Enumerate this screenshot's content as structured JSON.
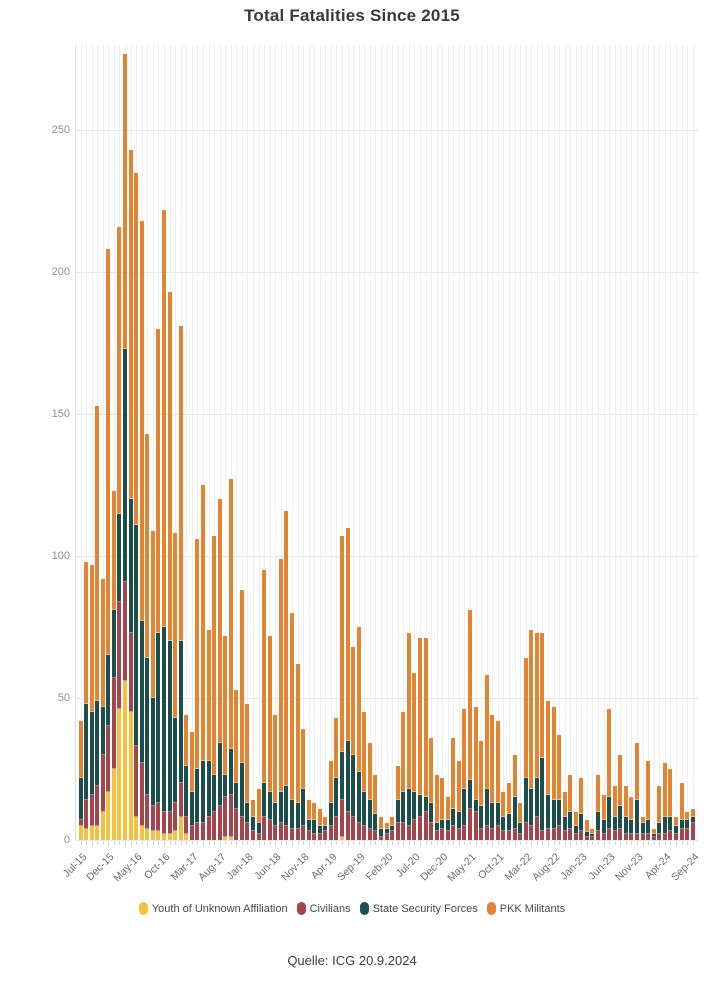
{
  "title": "Total Fatalities Since 2015",
  "source": "Quelle: ICG 20.9.2024",
  "y_axis": {
    "ticks": [
      0,
      50,
      100,
      150,
      200,
      250
    ]
  },
  "x_axis": {
    "tick_every": 5,
    "tick_labels": [
      "Jul-15",
      "Dec-15",
      "May-16",
      "Oct-16",
      "Mar-17",
      "Aug-17",
      "Jan-18",
      "Jun-18",
      "Nov-18",
      "Apr-19",
      "Sep-19",
      "Feb-20",
      "Jul-20",
      "Dec-20",
      "May-21",
      "Oct-21",
      "Mar-22",
      "Aug-22",
      "Jan-23",
      "Jun-23",
      "Nov-23",
      "Apr-24",
      "Sep-24"
    ]
  },
  "chart_data": {
    "type": "bar",
    "stacked": true,
    "title": "Total Fatalities Since 2015",
    "xlabel": "",
    "ylabel": "",
    "ylim": [
      0,
      280
    ],
    "grid": true,
    "legend_position": "bottom",
    "categories": [
      "Jul-15",
      "Aug-15",
      "Sep-15",
      "Oct-15",
      "Nov-15",
      "Dec-15",
      "Jan-16",
      "Feb-16",
      "Mar-16",
      "Apr-16",
      "May-16",
      "Jun-16",
      "Jul-16",
      "Aug-16",
      "Sep-16",
      "Oct-16",
      "Nov-16",
      "Dec-16",
      "Jan-17",
      "Feb-17",
      "Mar-17",
      "Apr-17",
      "May-17",
      "Jun-17",
      "Jul-17",
      "Aug-17",
      "Sep-17",
      "Oct-17",
      "Nov-17",
      "Dec-17",
      "Jan-18",
      "Feb-18",
      "Mar-18",
      "Apr-18",
      "May-18",
      "Jun-18",
      "Jul-18",
      "Aug-18",
      "Sep-18",
      "Oct-18",
      "Nov-18",
      "Dec-18",
      "Jan-19",
      "Feb-19",
      "Mar-19",
      "Apr-19",
      "May-19",
      "Jun-19",
      "Jul-19",
      "Aug-19",
      "Sep-19",
      "Oct-19",
      "Nov-19",
      "Dec-19",
      "Jan-20",
      "Feb-20",
      "Mar-20",
      "Apr-20",
      "May-20",
      "Jun-20",
      "Jul-20",
      "Aug-20",
      "Sep-20",
      "Oct-20",
      "Nov-20",
      "Dec-20",
      "Jan-21",
      "Feb-21",
      "Mar-21",
      "Apr-21",
      "May-21",
      "Jun-21",
      "Jul-21",
      "Aug-21",
      "Sep-21",
      "Oct-21",
      "Nov-21",
      "Dec-21",
      "Jan-22",
      "Feb-22",
      "Mar-22",
      "Apr-22",
      "May-22",
      "Jun-22",
      "Jul-22",
      "Aug-22",
      "Sep-22",
      "Oct-22",
      "Nov-22",
      "Dec-22",
      "Jan-23",
      "Feb-23",
      "Mar-23",
      "Apr-23",
      "May-23",
      "Jun-23",
      "Jul-23",
      "Aug-23",
      "Sep-23",
      "Oct-23",
      "Nov-23",
      "Dec-23",
      "Jan-24",
      "Feb-24",
      "Mar-24",
      "Apr-24",
      "May-24",
      "Jun-24",
      "Jul-24",
      "Aug-24",
      "Sep-24"
    ],
    "series": [
      {
        "name": "Youth of Unknown Affiliation",
        "color": "#F3C13F",
        "values": [
          5,
          4,
          5,
          5,
          10,
          17,
          25,
          46,
          56,
          45,
          8,
          5,
          4,
          3,
          3,
          2,
          2,
          3,
          8,
          2,
          0,
          0,
          0,
          0,
          0,
          0,
          1,
          1,
          0,
          0,
          0,
          0,
          0,
          0,
          0,
          0,
          0,
          0,
          0,
          0,
          0,
          0,
          0,
          0,
          0,
          0,
          0,
          1,
          0,
          0,
          0,
          0,
          0,
          0,
          0,
          0,
          0,
          0,
          0,
          0,
          0,
          0,
          0,
          0,
          0,
          0,
          0,
          0,
          0,
          0,
          0,
          0,
          0,
          0,
          0,
          0,
          0,
          0,
          0,
          0,
          0,
          0,
          0,
          0,
          0,
          0,
          0,
          0,
          0,
          0,
          0,
          0,
          0,
          0,
          0,
          0,
          0,
          0,
          0,
          0,
          0,
          0,
          0,
          0,
          0,
          0,
          0,
          0,
          0,
          0,
          0
        ]
      },
      {
        "name": "Civilians",
        "color": "#A4454D",
        "values": [
          2,
          10,
          11,
          14,
          20,
          23,
          32,
          38,
          35,
          28,
          25,
          22,
          12,
          9,
          10,
          8,
          8,
          10,
          12,
          6,
          5,
          6,
          6,
          8,
          10,
          12,
          14,
          15,
          11,
          8,
          6,
          3,
          2,
          8,
          7,
          5,
          6,
          5,
          4,
          4,
          5,
          3,
          2,
          2,
          3,
          5,
          8,
          13,
          10,
          8,
          6,
          5,
          4,
          3,
          1,
          2,
          3,
          6,
          6,
          5,
          7,
          8,
          10,
          6,
          3,
          4,
          3,
          5,
          4,
          5,
          11,
          10,
          4,
          5,
          4,
          5,
          3,
          3,
          4,
          2,
          6,
          5,
          8,
          3,
          4,
          4,
          5,
          3,
          4,
          2,
          3,
          1,
          1,
          3,
          2,
          4,
          3,
          4,
          2,
          2,
          2,
          2,
          2,
          1,
          2,
          2,
          3,
          2,
          4,
          4,
          6
        ]
      },
      {
        "name": "State Security Forces",
        "color": "#1D4E4E",
        "values": [
          15,
          34,
          29,
          30,
          17,
          25,
          24,
          31,
          82,
          47,
          78,
          50,
          48,
          38,
          60,
          65,
          60,
          30,
          50,
          18,
          12,
          19,
          22,
          20,
          13,
          22,
          8,
          16,
          9,
          19,
          7,
          5,
          4,
          12,
          10,
          8,
          11,
          14,
          10,
          9,
          13,
          4,
          5,
          3,
          2,
          8,
          14,
          17,
          25,
          22,
          18,
          12,
          10,
          6,
          3,
          2,
          2,
          8,
          11,
          13,
          10,
          8,
          5,
          7,
          3,
          3,
          4,
          6,
          6,
          13,
          10,
          4,
          8,
          13,
          9,
          8,
          5,
          6,
          11,
          4,
          16,
          13,
          14,
          26,
          12,
          10,
          9,
          5,
          6,
          3,
          6,
          2,
          1,
          7,
          5,
          11,
          5,
          8,
          6,
          5,
          12,
          4,
          5,
          1,
          4,
          6,
          5,
          3,
          3,
          3,
          2
        ]
      },
      {
        "name": "PKK Militants",
        "color": "#E28432",
        "values": [
          20,
          50,
          52,
          104,
          45,
          143,
          42,
          101,
          104,
          123,
          124,
          141,
          79,
          59,
          107,
          147,
          123,
          65,
          111,
          18,
          21,
          81,
          97,
          46,
          84,
          86,
          49,
          95,
          33,
          61,
          35,
          6,
          12,
          75,
          55,
          31,
          82,
          97,
          66,
          49,
          21,
          7,
          6,
          6,
          3,
          15,
          21,
          76,
          75,
          38,
          51,
          28,
          20,
          14,
          4,
          2,
          3,
          12,
          28,
          55,
          42,
          55,
          56,
          23,
          17,
          15,
          8,
          25,
          18,
          28,
          60,
          33,
          23,
          40,
          31,
          29,
          9,
          11,
          15,
          7,
          42,
          56,
          51,
          44,
          33,
          33,
          23,
          9,
          13,
          5,
          13,
          4,
          2,
          13,
          9,
          31,
          11,
          18,
          11,
          8,
          20,
          2,
          21,
          2,
          13,
          19,
          17,
          3,
          13,
          3,
          3
        ]
      }
    ]
  }
}
